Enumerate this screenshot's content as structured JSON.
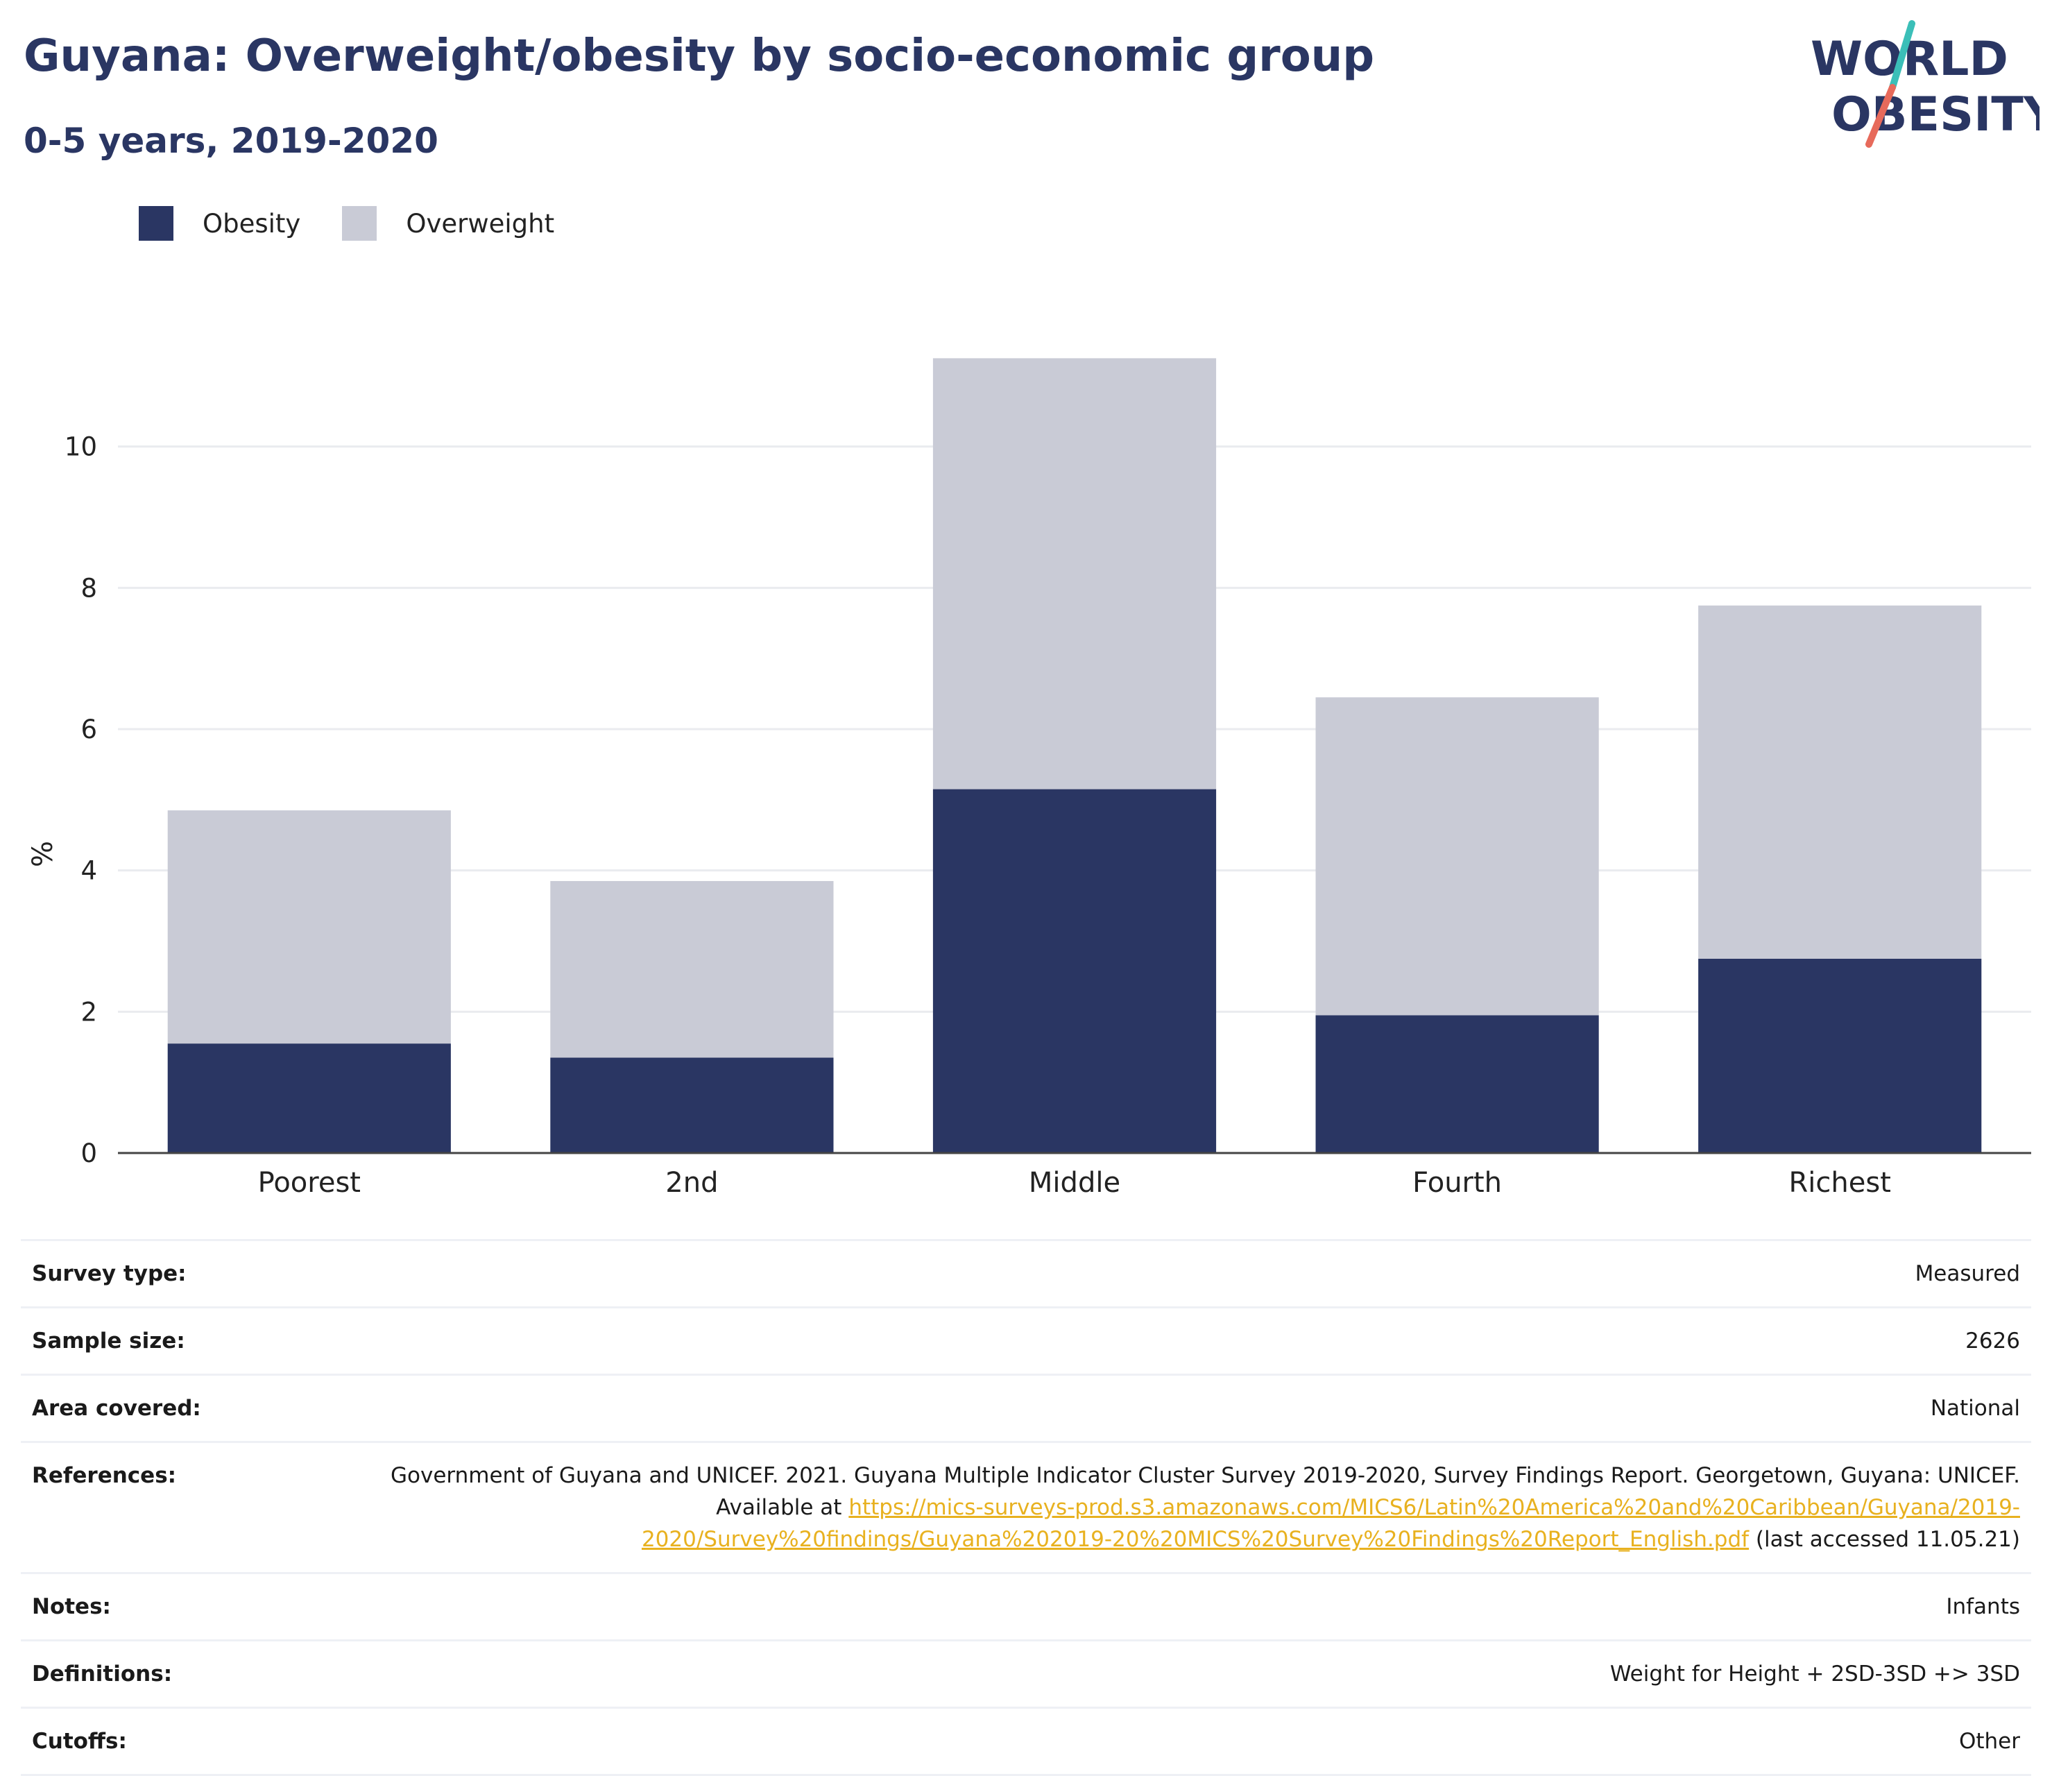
{
  "header": {
    "title": "Guyana: Overweight/obesity by socio-economic group",
    "subtitle": "0-5 years, 2019-2020",
    "logo": {
      "line1": "WORLD",
      "line2": "OBESITY",
      "text_color": "#2a3663",
      "slash_teal": "#3bbfb8",
      "slash_coral": "#e76a5b"
    }
  },
  "colors": {
    "obesity": "#2a3663",
    "overweight": "#c9cbd6",
    "grid": "#eaebef",
    "axis": "#444444"
  },
  "chart_data": {
    "type": "bar",
    "stacked": true,
    "categories": [
      "Poorest",
      "2nd",
      "Middle",
      "Fourth",
      "Richest"
    ],
    "series": [
      {
        "name": "Obesity",
        "values": [
          1.55,
          1.35,
          5.15,
          1.95,
          2.75
        ]
      },
      {
        "name": "Overweight",
        "values": [
          3.3,
          2.5,
          6.1,
          4.5,
          5.0
        ]
      }
    ],
    "ylabel": "%",
    "ylim": [
      0,
      12
    ],
    "yticks": [
      0,
      2,
      4,
      6,
      8,
      10
    ],
    "grid": true,
    "legend_position": "top-left"
  },
  "info": [
    {
      "label": "Survey type:",
      "value": "Measured"
    },
    {
      "label": "Sample size:",
      "value": "2626"
    },
    {
      "label": "Area covered:",
      "value": "National"
    },
    {
      "label": "References:",
      "value_prefix": "Government of Guyana and UNICEF. 2021. Guyana Multiple Indicator Cluster Survey 2019-2020, Survey Findings Report. Georgetown, Guyana: UNICEF. Available at ",
      "link": "https://mics-surveys-prod.s3.amazonaws.com/MICS6/Latin%20America%20and%20Caribbean/Guyana/2019-2020/Survey%20findings/Guyana%202019-20%20MICS%20Survey%20Findings%20Report_English.pdf",
      "value_suffix": " (last accessed 11.05.21)"
    },
    {
      "label": "Notes:",
      "value": "Infants"
    },
    {
      "label": "Definitions:",
      "value": "Weight for Height + 2SD-3SD +> 3SD"
    },
    {
      "label": "Cutoffs:",
      "value": "Other"
    }
  ]
}
